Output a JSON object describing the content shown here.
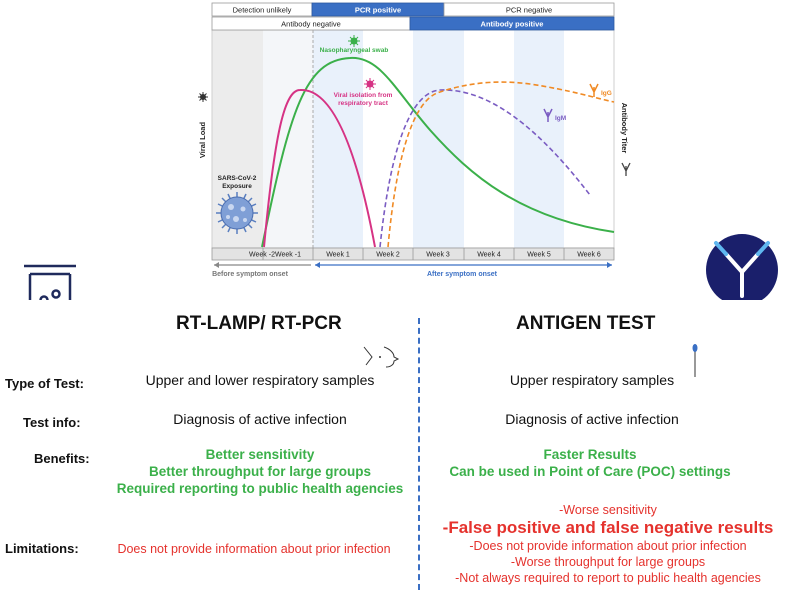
{
  "chart": {
    "top_bars": {
      "detection_unlikely": "Detection unlikely",
      "pcr_positive": "PCR positive",
      "pcr_negative": "PCR negative",
      "antibody_negative": "Antibody negative",
      "antibody_positive": "Antibody positive"
    },
    "y_left": "Viral Load",
    "y_right": "Antibody Titer",
    "exposure_line1": "SARS-CoV-2",
    "exposure_line2": "Exposure",
    "weeks": [
      "Week -2",
      "Week -1",
      "Week 1",
      "Week 2",
      "Week 3",
      "Week 4",
      "Week 5",
      "Week 6"
    ],
    "before_onset": "Before symptom onset",
    "after_onset": "After symptom onset",
    "curve_labels": {
      "swab": "Nasopharyngeal swab",
      "isolation_line1": "Viral isolation from",
      "isolation_line2": "respiratory tract",
      "igg": "IgG",
      "igm": "IgM"
    },
    "colors": {
      "swab": "#3bb04a",
      "isolation": "#d63384",
      "igg": "#f08a24",
      "igm": "#7a5cc2",
      "accent": "#3a6fc4"
    }
  },
  "comparison": {
    "left_title": "RT-LAMP/ RT-PCR",
    "right_title": "ANTIGEN TEST",
    "rows": {
      "type": {
        "label": "Type of Test:",
        "left": "Upper and lower respiratory samples",
        "right": "Upper respiratory samples"
      },
      "info": {
        "label": "Test info:",
        "left": "Diagnosis of active infection",
        "right": "Diagnosis of active infection"
      },
      "benefits": {
        "label": "Benefits:",
        "left": [
          "Better sensitivity",
          "Better throughput for large groups",
          "Required reporting to public health agencies"
        ],
        "right": [
          "Faster Results",
          "Can be used in Point of Care (POC) settings"
        ]
      },
      "limitations": {
        "label": "Limitations:",
        "left": "Does not provide information about prior infection",
        "right": [
          "-Worse sensitivity",
          "-False positive and false negative results",
          "-Does not provide information about prior infection",
          "-Worse throughput for large groups",
          "-Not always required to report to public health agencies"
        ]
      }
    }
  }
}
